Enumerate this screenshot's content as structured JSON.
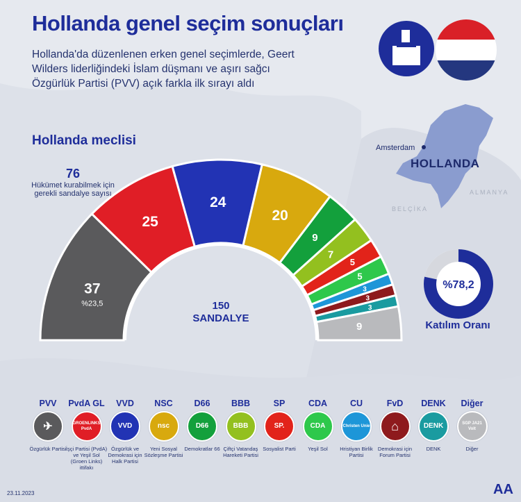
{
  "title": "Hollanda genel seçim sonuçları",
  "intro": "Hollanda'da düzenlenen erken genel seçimlerde, Geert Wilders liderliğindeki İslam düşmanı ve aşırı sağcı Özgürlük Partisi (PVV) açık farkla ilk sırayı aldı",
  "parliament_heading": "Hollanda meclisi",
  "majority": {
    "number": "76",
    "text": "Hükümet kurabilmek için gerekli sandalye sayısı"
  },
  "total": {
    "number": "150",
    "label": "SANDALYE"
  },
  "map": {
    "city": "Amsterdam",
    "country": "HOLLANDA",
    "neighbor_east": "ALMANYA",
    "neighbor_south": "BELÇİKA"
  },
  "turnout": {
    "value_label": "%78,2",
    "value": 78.2,
    "label": "Katılım Oranı"
  },
  "date": "23.11.2023",
  "agency": "AA",
  "chart_data": {
    "type": "pie",
    "subtype": "hemicycle",
    "total_seats": 150,
    "majority": 76,
    "parties": [
      {
        "code": "PVV",
        "seats": 37,
        "seats_label": "37",
        "share_label": "%23,5",
        "color": "#5a5a5c"
      },
      {
        "code": "PvdA GL",
        "seats": 25,
        "seats_label": "25",
        "color": "#e01e26"
      },
      {
        "code": "VVD",
        "seats": 24,
        "seats_label": "24",
        "color": "#2233b4"
      },
      {
        "code": "NSC",
        "seats": 20,
        "seats_label": "20",
        "color": "#d8a90e"
      },
      {
        "code": "D66",
        "seats": 9,
        "seats_label": "9",
        "color": "#13a03c"
      },
      {
        "code": "BBB",
        "seats": 7,
        "seats_label": "7",
        "color": "#93c01f"
      },
      {
        "code": "SP",
        "seats": 5,
        "seats_label": "5",
        "color": "#e2231a"
      },
      {
        "code": "CDA",
        "seats": 5,
        "seats_label": "5",
        "color": "#2ec84b"
      },
      {
        "code": "CU",
        "seats": 3,
        "seats_label": "3",
        "color": "#1d96d8"
      },
      {
        "code": "FvD",
        "seats": 3,
        "seats_label": "3",
        "color": "#8e1a1d"
      },
      {
        "code": "DENK",
        "seats": 3,
        "seats_label": "3",
        "color": "#1a9ba0"
      },
      {
        "code": "Diğer",
        "seats": 9,
        "seats_label": "9",
        "color": "#b9babd"
      }
    ]
  },
  "legend": [
    {
      "code": "PVV",
      "logo": "eagle-icon",
      "logo_text": "",
      "name": "Özgürlük Partisi",
      "color": "#5a5a5c"
    },
    {
      "code": "PvdA GL",
      "logo": "groenlinks-pvda-logo",
      "logo_text": "GROENLINKS PvdA",
      "name": "İşçi Partisi (PvdA) ve Yeşil Sol (Groen Links) ittifakı",
      "color": "#e01e26"
    },
    {
      "code": "VVD",
      "logo": "vvd-logo",
      "logo_text": "VVD",
      "name": "Özgürlük ve Demokrasi için Halk Partisi",
      "color": "#2233b4"
    },
    {
      "code": "NSC",
      "logo": "nsc-logo",
      "logo_text": "nsc",
      "name": "Yeni Sosyal Sözleşme Partisi",
      "color": "#d8a90e"
    },
    {
      "code": "D66",
      "logo": "d66-logo",
      "logo_text": "D66",
      "name": "Demokratlar 66",
      "color": "#13a03c"
    },
    {
      "code": "BBB",
      "logo": "bbb-logo",
      "logo_text": "BBB",
      "name": "Çiftçi Vatandaş Hareketi Partisi",
      "color": "#93c01f"
    },
    {
      "code": "SP",
      "logo": "sp-logo",
      "logo_text": "SP.",
      "name": "Sosyalist Parti",
      "color": "#e2231a"
    },
    {
      "code": "CDA",
      "logo": "cda-logo",
      "logo_text": "CDA",
      "name": "Yeşil Sol",
      "color": "#2ec84b"
    },
    {
      "code": "CU",
      "logo": "cu-logo",
      "logo_text": "Christen Unie",
      "name": "Hristiyan Birlik Partisi",
      "color": "#1d96d8"
    },
    {
      "code": "FvD",
      "logo": "temple-icon",
      "logo_text": "",
      "name": "Demokrasi için Forum Partisi",
      "color": "#8e1a1d"
    },
    {
      "code": "DENK",
      "logo": "denk-logo",
      "logo_text": "DENK",
      "name": "DENK",
      "color": "#1a9ba0"
    },
    {
      "code": "Diğer",
      "logo": "others-logo",
      "logo_text": "SGP JA21 Volt",
      "name": "Diğer",
      "color": "#b9babd"
    }
  ]
}
